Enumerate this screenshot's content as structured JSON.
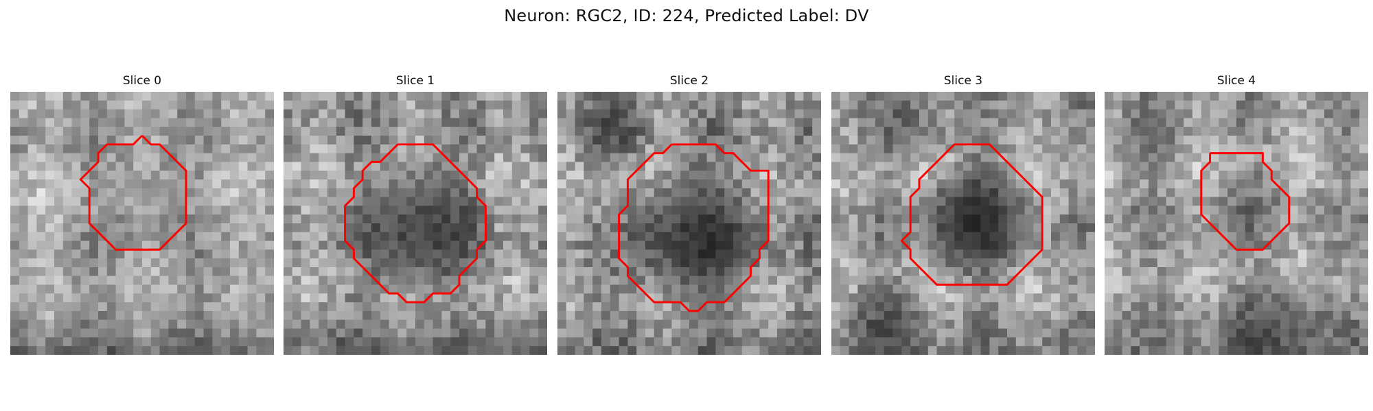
{
  "figure": {
    "title": "Neuron: RGC2, ID: 224, Predicted Label: DV"
  },
  "panels": [
    {
      "title": "Slice 0"
    },
    {
      "title": "Slice 1"
    },
    {
      "title": "Slice 2"
    },
    {
      "title": "Slice 3"
    },
    {
      "title": "Slice 4"
    }
  ],
  "colors": {
    "background": "#ffffff",
    "contour": "#ff0000"
  }
}
